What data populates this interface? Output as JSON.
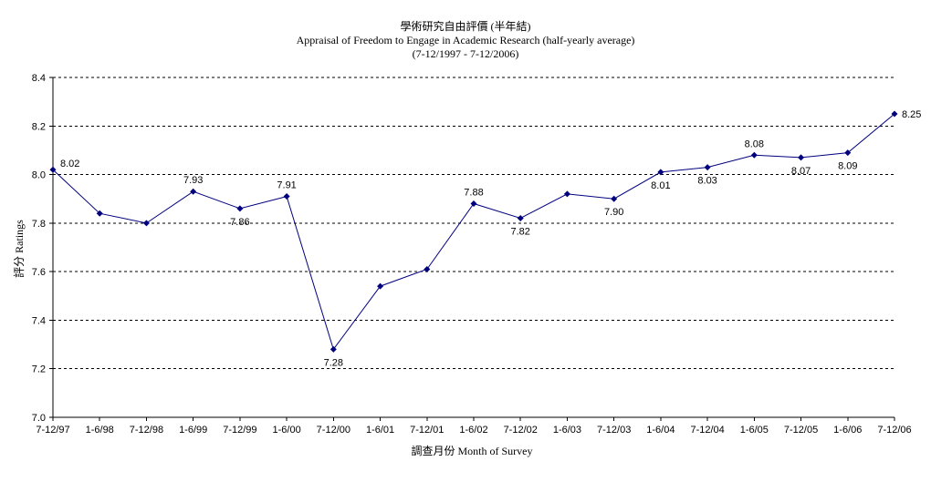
{
  "chart_data": {
    "type": "line",
    "title": "學術研究自由評價 (半年結)",
    "subtitle": "Appraisal of Freedom to Engage in Academic Research (half-yearly average)",
    "period": "(7-12/1997 - 7-12/2006)",
    "xlabel": "調查月份 Month of Survey",
    "ylabel": "評分 Ratings",
    "ylim": [
      7.0,
      8.4
    ],
    "yticks": [
      "7.0",
      "7.2",
      "7.4",
      "7.6",
      "7.8",
      "8.0",
      "8.2",
      "8.4"
    ],
    "grid": "horizontal dashed",
    "legend": "none",
    "line_color": "#00007f",
    "categories": [
      "7-12/97",
      "1-6/98",
      "7-12/98",
      "1-6/99",
      "7-12/99",
      "1-6/00",
      "7-12/00",
      "1-6/01",
      "7-12/01",
      "1-6/02",
      "7-12/02",
      "1-6/03",
      "7-12/03",
      "1-6/04",
      "7-12/04",
      "1-6/05",
      "7-12/05",
      "1-6/06",
      "7-12/06"
    ],
    "series": [
      {
        "values": [
          8.02,
          7.84,
          7.8,
          7.93,
          7.86,
          7.91,
          7.28,
          7.54,
          7.61,
          7.88,
          7.82,
          7.92,
          7.9,
          8.01,
          8.03,
          8.08,
          8.07,
          8.09,
          8.25
        ],
        "labels": [
          "8.02",
          "",
          "",
          "7.93",
          "7.86",
          "7.91",
          "7.28",
          "",
          "",
          "7.88",
          "7.82",
          "",
          "7.90",
          "8.01",
          "8.03",
          "8.08",
          "8.07",
          "8.09",
          "8.25"
        ]
      }
    ]
  }
}
